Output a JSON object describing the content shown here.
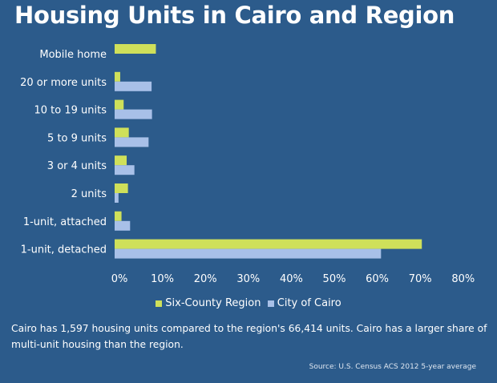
{
  "chart_data": {
    "type": "bar",
    "orientation": "horizontal",
    "title": "Housing Units in Cairo and Region",
    "categories": [
      "Mobile home",
      "20 or more units",
      "10 to 19 units",
      "5 to 9 units",
      "3 or 4 units",
      "2 units",
      "1-unit, attached",
      "1-unit, detached"
    ],
    "series": [
      {
        "name": "Six-County Region",
        "color": "#cfe05a",
        "values": [
          9.6,
          1.3,
          2.1,
          3.3,
          2.8,
          3.1,
          1.6,
          71.5
        ]
      },
      {
        "name": "City of Cairo",
        "color": "#a8c0e8",
        "values": [
          0,
          8.6,
          8.7,
          7.9,
          4.6,
          0.9,
          3.6,
          62.0
        ]
      }
    ],
    "xlim": [
      0,
      80
    ],
    "xticks": [
      "0%",
      "10%",
      "20%",
      "30%",
      "40%",
      "50%",
      "60%",
      "70%",
      "80%"
    ],
    "grid": false,
    "legend_position": "bottom"
  },
  "caption": "Cairo has 1,597 housing units compared to the region's 66,414 units. Cairo has a larger share of multi-unit housing than the region.",
  "source": "Source: U.S. Census ACS 2012 5-year average",
  "background_color": "#2c5b8b"
}
